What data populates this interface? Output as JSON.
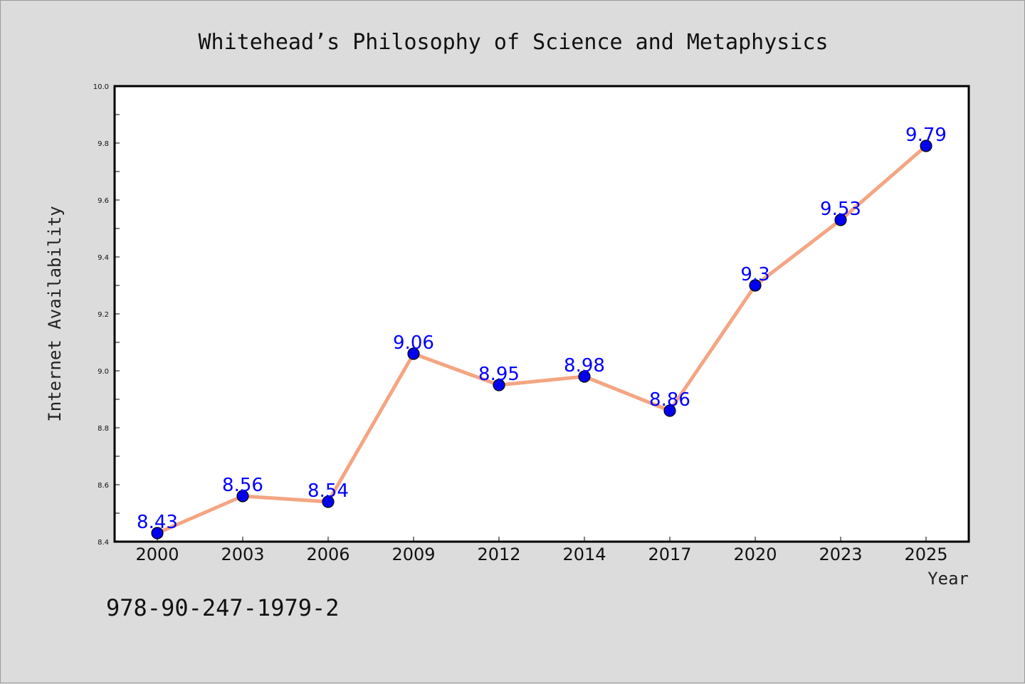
{
  "chart_data": {
    "type": "line",
    "title": "Whitehead’s Philosophy of Science and Metaphysics",
    "xlabel": "Year",
    "ylabel": "Internet Availability",
    "categories": [
      "2000",
      "2003",
      "2006",
      "2009",
      "2012",
      "2014",
      "2017",
      "2020",
      "2023",
      "2025"
    ],
    "series": [
      {
        "values": [
          8.43,
          8.56,
          8.54,
          9.06,
          8.95,
          8.98,
          8.86,
          9.3,
          9.53,
          9.79
        ],
        "value_labels": [
          "8.43",
          "8.56",
          "8.54",
          "9.06",
          "8.95",
          "8.98",
          "8.86",
          "9.3",
          "9.53",
          "9.79"
        ]
      }
    ],
    "ylim": [
      8.4,
      10.0
    ],
    "yticks": [
      "8.4",
      "8.6",
      "8.8",
      "9.0",
      "9.2",
      "9.4",
      "9.6",
      "9.8",
      "10.0"
    ],
    "grid": false,
    "legend": "none",
    "colors": {
      "line": "#f4a582",
      "marker": "#0000ee",
      "data_label": "#0000ff",
      "background": "#dcdcdc",
      "plot_area": "#ffffff"
    }
  },
  "footer": {
    "code": "978-90-247-1979-2"
  }
}
